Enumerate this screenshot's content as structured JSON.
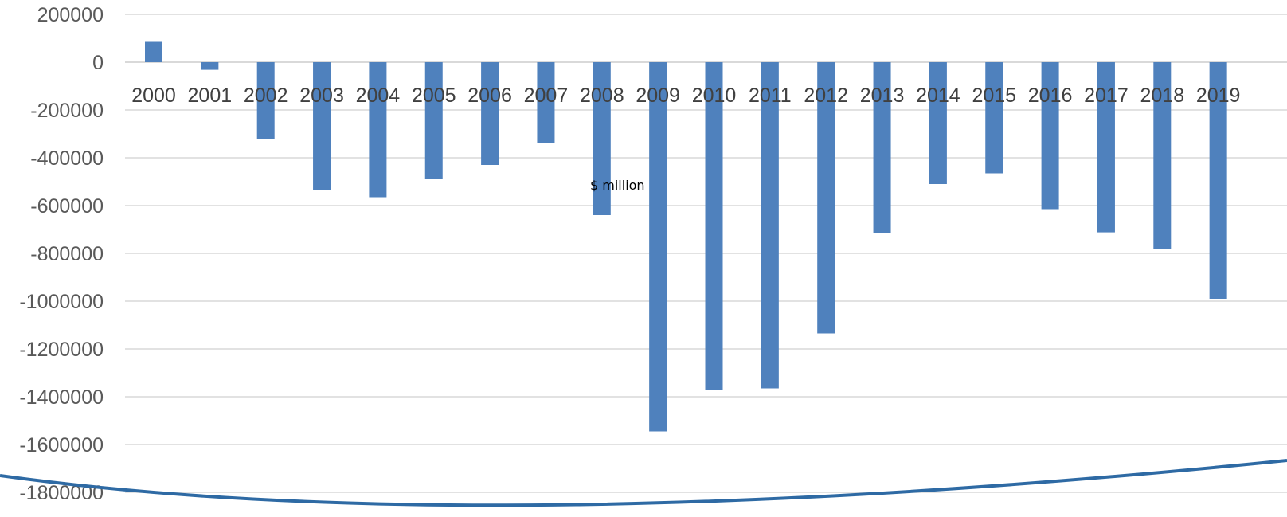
{
  "chart_data": {
    "type": "bar",
    "categories": [
      "2000",
      "2001",
      "2002",
      "2003",
      "2004",
      "2005",
      "2006",
      "2007",
      "2008",
      "2009",
      "2010",
      "2011",
      "2012",
      "2013",
      "2014",
      "2015",
      "2016",
      "2017",
      "2018",
      "2019"
    ],
    "values": [
      85000,
      -32000,
      -320000,
      -535000,
      -565000,
      -490000,
      -430000,
      -340000,
      -640000,
      -1545000,
      -1370000,
      -1365000,
      -1135000,
      -715000,
      -510000,
      -465000,
      -615000,
      -712000,
      -780000,
      -990000
    ],
    "ylim": [
      -1800000,
      200000
    ],
    "y_ticks": [
      200000,
      0,
      -200000,
      -400000,
      -600000,
      -800000,
      -1000000,
      -1200000,
      -1400000,
      -1600000,
      -1800000
    ],
    "unit_label": "$ million",
    "grid": true,
    "bar_color": "#4f81bd",
    "curve_color": "#2e6aa4"
  }
}
